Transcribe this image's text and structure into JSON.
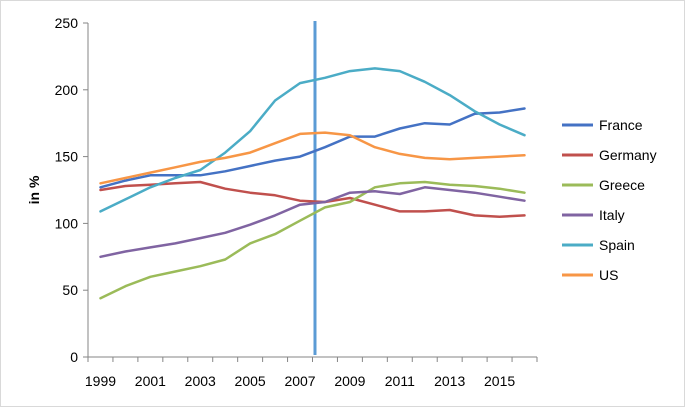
{
  "chart_data": {
    "type": "line",
    "title": "",
    "xlabel": "",
    "ylabel": "in %",
    "xlim": [
      1999,
      2016
    ],
    "ylim": [
      0,
      250
    ],
    "yticks": [
      0,
      50,
      100,
      150,
      200,
      250
    ],
    "xticks": [
      1999,
      2001,
      2003,
      2005,
      2007,
      2009,
      2011,
      2013,
      2015
    ],
    "grid": false,
    "legend_position": "right",
    "x": [
      1999,
      2000,
      2001,
      2002,
      2003,
      2004,
      2005,
      2006,
      2007,
      2008,
      2009,
      2010,
      2011,
      2012,
      2013,
      2014,
      2015,
      2016
    ],
    "reference_line": {
      "x": 2007.6,
      "color": "#5b9bd5"
    },
    "series": [
      {
        "name": "France",
        "color": "#4472c4",
        "values": [
          127,
          132,
          136,
          136,
          136,
          139,
          143,
          147,
          150,
          157,
          165,
          165,
          171,
          175,
          174,
          182,
          183,
          186
        ]
      },
      {
        "name": "Germany",
        "color": "#c0504d",
        "values": [
          125,
          128,
          129,
          130,
          131,
          126,
          123,
          121,
          117,
          116,
          119,
          114,
          109,
          109,
          110,
          106,
          105,
          106
        ]
      },
      {
        "name": "Greece",
        "color": "#9bbb59",
        "values": [
          44,
          53,
          60,
          64,
          68,
          73,
          85,
          92,
          102,
          112,
          116,
          127,
          130,
          131,
          129,
          128,
          126,
          123
        ]
      },
      {
        "name": "Italy",
        "color": "#8064a2",
        "values": [
          75,
          79,
          82,
          85,
          89,
          93,
          99,
          106,
          114,
          116,
          123,
          124,
          122,
          127,
          125,
          123,
          120,
          117
        ]
      },
      {
        "name": "Spain",
        "color": "#4bacc6",
        "values": [
          109,
          118,
          127,
          134,
          140,
          153,
          169,
          192,
          205,
          209,
          214,
          216,
          214,
          206,
          196,
          184,
          174,
          166
        ]
      },
      {
        "name": "US",
        "color": "#f79646",
        "values": [
          130,
          134,
          138,
          142,
          146,
          149,
          153,
          160,
          167,
          168,
          166,
          157,
          152,
          149,
          148,
          149,
          150,
          151
        ]
      }
    ]
  }
}
